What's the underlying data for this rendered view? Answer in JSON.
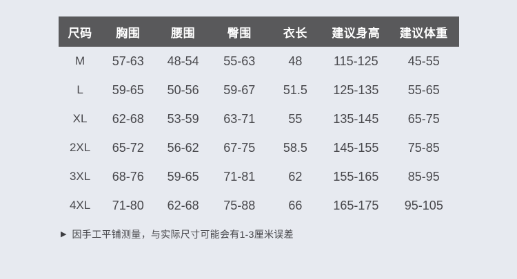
{
  "table": {
    "headers": [
      "尺码",
      "胸围",
      "腰围",
      "臀围",
      "衣长",
      "建议身高",
      "建议体重"
    ],
    "rows": [
      [
        "M",
        "57-63",
        "48-54",
        "55-63",
        "48",
        "115-125",
        "45-55"
      ],
      [
        "L",
        "59-65",
        "50-56",
        "59-67",
        "51.5",
        "125-135",
        "55-65"
      ],
      [
        "XL",
        "62-68",
        "53-59",
        "63-71",
        "55",
        "135-145",
        "65-75"
      ],
      [
        "2XL",
        "65-72",
        "56-62",
        "67-75",
        "58.5",
        "145-155",
        "75-85"
      ],
      [
        "3XL",
        "68-76",
        "59-65",
        "71-81",
        "62",
        "155-165",
        "85-95"
      ],
      [
        "4XL",
        "71-80",
        "62-68",
        "75-88",
        "66",
        "165-175",
        "95-105"
      ]
    ]
  },
  "footer": {
    "marker_glyph": "▶",
    "note": "因手工平铺测量，与实际尺寸可能会有1-3厘米误差"
  },
  "colors": {
    "page_bg": "#e7eaf0",
    "header_bg": "#59595b",
    "header_text": "#ffffff",
    "body_text": "#48484c"
  }
}
